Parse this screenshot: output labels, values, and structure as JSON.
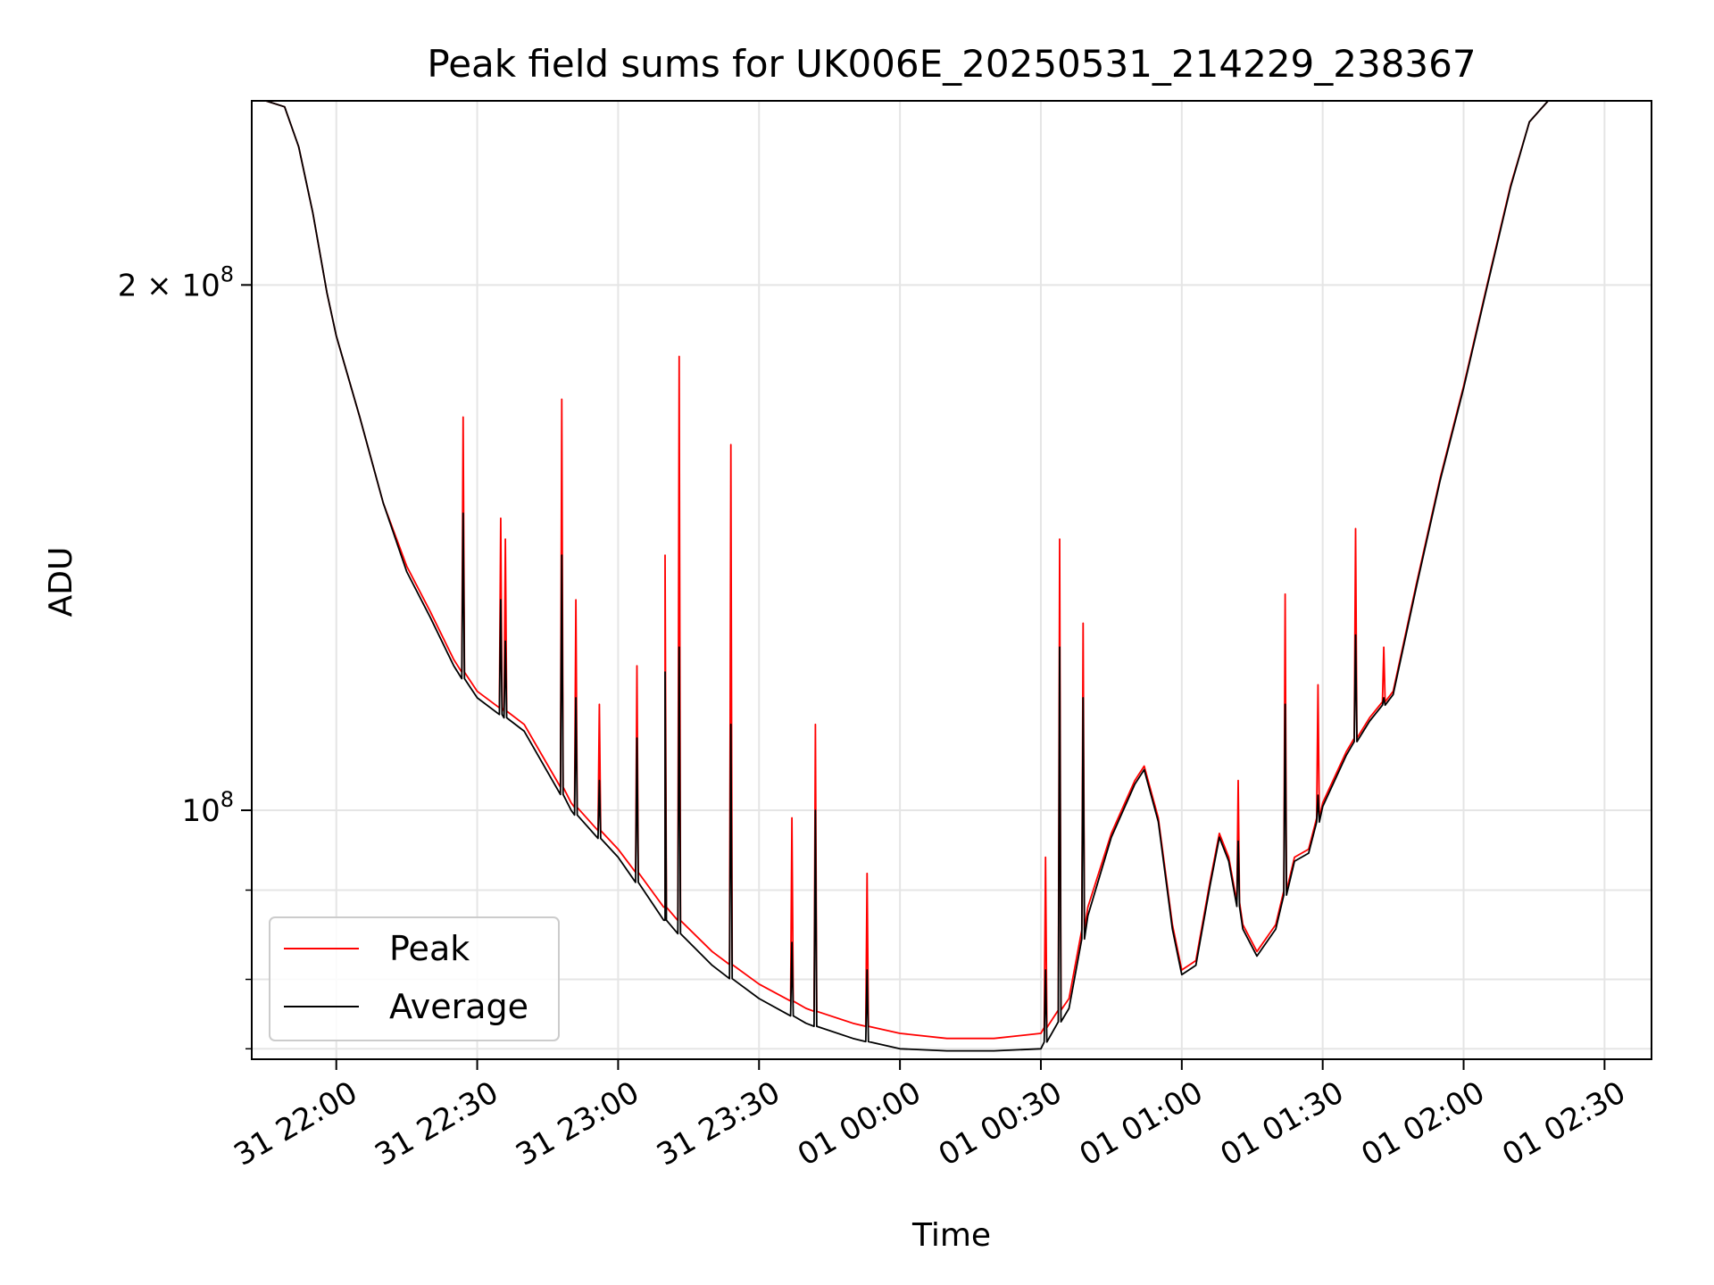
{
  "chart_data": {
    "type": "line",
    "title": "Peak field sums for UK006E_20250531_214229_238367",
    "xlabel": "Time",
    "ylabel": "ADU",
    "y_scale": "log",
    "ylim": [
      72000000,
      255000000
    ],
    "xlim": [
      "2025-05-31 21:42",
      "2025-06-01 02:40"
    ],
    "grid": true,
    "legend_position": "lower-left",
    "x_ticks": [
      {
        "t": "2025-05-31 22:00",
        "label": "31 22:00"
      },
      {
        "t": "2025-05-31 22:30",
        "label": "31 22:30"
      },
      {
        "t": "2025-05-31 23:00",
        "label": "31 23:00"
      },
      {
        "t": "2025-05-31 23:30",
        "label": "31 23:30"
      },
      {
        "t": "2025-06-01 00:00",
        "label": "01 00:00"
      },
      {
        "t": "2025-06-01 00:30",
        "label": "01 00:30"
      },
      {
        "t": "2025-06-01 01:00",
        "label": "01 01:00"
      },
      {
        "t": "2025-06-01 01:30",
        "label": "01 01:30"
      },
      {
        "t": "2025-06-01 02:00",
        "label": "01 02:00"
      },
      {
        "t": "2025-06-01 02:30",
        "label": "01 02:30"
      }
    ],
    "y_ticks": [
      {
        "value": 200000000,
        "base": "2 × 10",
        "exp": "8"
      },
      {
        "value": 100000000,
        "base": "10",
        "exp": "8"
      }
    ],
    "y_minor_ticks": [
      80000000,
      90000000,
      73000000
    ],
    "colors": {
      "peak": "#ff0000",
      "average": "#000000"
    },
    "series": [
      {
        "name": "Peak",
        "color": "#ff0000",
        "points": [
          [
            "2025-05-31 21:45",
            255000000
          ],
          [
            "2025-05-31 21:49",
            253000000
          ],
          [
            "2025-05-31 21:52",
            240000000
          ],
          [
            "2025-05-31 21:55",
            220000000
          ],
          [
            "2025-05-31 21:58",
            198000000
          ],
          [
            "2025-05-31 22:00",
            187000000
          ],
          [
            "2025-05-31 22:05",
            168000000
          ],
          [
            "2025-05-31 22:10",
            150000000
          ],
          [
            "2025-05-31 22:15",
            138000000
          ],
          [
            "2025-05-31 22:20",
            130000000
          ],
          [
            "2025-05-31 22:25",
            122000000
          ],
          [
            "2025-05-31 22:30",
            117000000
          ],
          [
            "2025-05-31 22:40",
            112000000
          ],
          [
            "2025-05-31 22:50",
            101000000
          ],
          [
            "2025-05-31 23:00",
            95000000
          ],
          [
            "2025-05-31 23:10",
            88000000
          ],
          [
            "2025-05-31 23:20",
            83000000
          ],
          [
            "2025-05-31 23:30",
            79500000
          ],
          [
            "2025-05-31 23:40",
            77000000
          ],
          [
            "2025-05-31 23:50",
            75500000
          ],
          [
            "2025-06-01 00:00",
            74500000
          ],
          [
            "2025-06-01 00:10",
            74000000
          ],
          [
            "2025-06-01 00:20",
            74000000
          ],
          [
            "2025-06-01 00:30",
            74500000
          ],
          [
            "2025-06-01 00:36",
            78000000
          ],
          [
            "2025-06-01 00:40",
            88000000
          ],
          [
            "2025-06-01 00:45",
            97000000
          ],
          [
            "2025-06-01 00:50",
            104000000
          ],
          [
            "2025-06-01 00:52",
            106000000
          ],
          [
            "2025-06-01 00:55",
            99000000
          ],
          [
            "2025-06-01 00:58",
            86000000
          ],
          [
            "2025-06-01 01:00",
            81000000
          ],
          [
            "2025-06-01 01:03",
            82000000
          ],
          [
            "2025-06-01 01:06",
            91000000
          ],
          [
            "2025-06-01 01:08",
            97000000
          ],
          [
            "2025-06-01 01:10",
            94000000
          ],
          [
            "2025-06-01 01:13",
            86000000
          ],
          [
            "2025-06-01 01:16",
            83000000
          ],
          [
            "2025-06-01 01:20",
            86000000
          ],
          [
            "2025-06-01 01:24",
            94000000
          ],
          [
            "2025-06-01 01:27",
            95000000
          ],
          [
            "2025-06-01 01:30",
            101000000
          ],
          [
            "2025-06-01 01:35",
            108000000
          ],
          [
            "2025-06-01 01:40",
            113000000
          ],
          [
            "2025-06-01 01:45",
            117000000
          ],
          [
            "2025-06-01 01:50",
            135000000
          ],
          [
            "2025-06-01 01:55",
            155000000
          ],
          [
            "2025-06-01 02:00",
            175000000
          ],
          [
            "2025-06-01 02:05",
            200000000
          ],
          [
            "2025-06-01 02:10",
            228000000
          ],
          [
            "2025-06-01 02:14",
            248000000
          ],
          [
            "2025-06-01 02:18",
            255000000
          ]
        ]
      },
      {
        "name": "Average",
        "color": "#000000",
        "points": [
          [
            "2025-05-31 21:45",
            255000000
          ],
          [
            "2025-05-31 21:49",
            253000000
          ],
          [
            "2025-05-31 21:52",
            240000000
          ],
          [
            "2025-05-31 21:55",
            220000000
          ],
          [
            "2025-05-31 21:58",
            198000000
          ],
          [
            "2025-05-31 22:00",
            187000000
          ],
          [
            "2025-05-31 22:05",
            168000000
          ],
          [
            "2025-05-31 22:10",
            150000000
          ],
          [
            "2025-05-31 22:15",
            137000000
          ],
          [
            "2025-05-31 22:20",
            129000000
          ],
          [
            "2025-05-31 22:25",
            121000000
          ],
          [
            "2025-05-31 22:30",
            116000000
          ],
          [
            "2025-05-31 22:40",
            111000000
          ],
          [
            "2025-05-31 22:50",
            100000000
          ],
          [
            "2025-05-31 23:00",
            94000000
          ],
          [
            "2025-05-31 23:10",
            86500000
          ],
          [
            "2025-05-31 23:20",
            81500000
          ],
          [
            "2025-05-31 23:30",
            78000000
          ],
          [
            "2025-05-31 23:40",
            75500000
          ],
          [
            "2025-05-31 23:50",
            74000000
          ],
          [
            "2025-06-01 00:00",
            73000000
          ],
          [
            "2025-06-01 00:10",
            72800000
          ],
          [
            "2025-06-01 00:20",
            72800000
          ],
          [
            "2025-06-01 00:30",
            73000000
          ],
          [
            "2025-06-01 00:36",
            77000000
          ],
          [
            "2025-06-01 00:40",
            87000000
          ],
          [
            "2025-06-01 00:45",
            96500000
          ],
          [
            "2025-06-01 00:50",
            103500000
          ],
          [
            "2025-06-01 00:52",
            105500000
          ],
          [
            "2025-06-01 00:55",
            98500000
          ],
          [
            "2025-06-01 00:58",
            85500000
          ],
          [
            "2025-06-01 01:00",
            80500000
          ],
          [
            "2025-06-01 01:03",
            81500000
          ],
          [
            "2025-06-01 01:06",
            90500000
          ],
          [
            "2025-06-01 01:08",
            96500000
          ],
          [
            "2025-06-01 01:10",
            93500000
          ],
          [
            "2025-06-01 01:13",
            85500000
          ],
          [
            "2025-06-01 01:16",
            82500000
          ],
          [
            "2025-06-01 01:20",
            85500000
          ],
          [
            "2025-06-01 01:24",
            93500000
          ],
          [
            "2025-06-01 01:27",
            94500000
          ],
          [
            "2025-06-01 01:30",
            100500000
          ],
          [
            "2025-06-01 01:35",
            107500000
          ],
          [
            "2025-06-01 01:40",
            112500000
          ],
          [
            "2025-06-01 01:45",
            116500000
          ],
          [
            "2025-06-01 01:50",
            134500000
          ],
          [
            "2025-06-01 01:55",
            154500000
          ],
          [
            "2025-06-01 02:00",
            174500000
          ],
          [
            "2025-06-01 02:05",
            199500000
          ],
          [
            "2025-06-01 02:10",
            227500000
          ],
          [
            "2025-06-01 02:14",
            248000000
          ],
          [
            "2025-06-01 02:18",
            255000000
          ]
        ]
      }
    ],
    "spikes": [
      {
        "t": "2025-05-31 22:27",
        "peak": 168000000,
        "avg": 148000000
      },
      {
        "t": "2025-05-31 22:35",
        "peak": 147000000,
        "avg": 132000000
      },
      {
        "t": "2025-05-31 22:36",
        "peak": 143000000,
        "avg": 125000000
      },
      {
        "t": "2025-05-31 22:48",
        "peak": 172000000,
        "avg": 140000000
      },
      {
        "t": "2025-05-31 22:51",
        "peak": 132000000,
        "avg": 116000000
      },
      {
        "t": "2025-05-31 22:56",
        "peak": 115000000,
        "avg": 104000000
      },
      {
        "t": "2025-05-31 23:04",
        "peak": 121000000,
        "avg": 110000000
      },
      {
        "t": "2025-05-31 23:10",
        "peak": 140000000,
        "avg": 120000000
      },
      {
        "t": "2025-05-31 23:13",
        "peak": 182000000,
        "avg": 124000000
      },
      {
        "t": "2025-05-31 23:24",
        "peak": 162000000,
        "avg": 112000000
      },
      {
        "t": "2025-05-31 23:37",
        "peak": 99000000,
        "avg": 84000000
      },
      {
        "t": "2025-05-31 23:42",
        "peak": 112000000,
        "avg": 100000000
      },
      {
        "t": "2025-05-31 23:53",
        "peak": 92000000,
        "avg": 81000000
      },
      {
        "t": "2025-06-01 00:31",
        "peak": 94000000,
        "avg": 81000000
      },
      {
        "t": "2025-06-01 00:34",
        "peak": 143000000,
        "avg": 124000000
      },
      {
        "t": "2025-06-01 00:39",
        "peak": 128000000,
        "avg": 116000000
      },
      {
        "t": "2025-06-01 01:12",
        "peak": 104000000,
        "avg": 96000000
      },
      {
        "t": "2025-06-01 01:22",
        "peak": 133000000,
        "avg": 115000000
      },
      {
        "t": "2025-06-01 01:29",
        "peak": 118000000,
        "avg": 102000000
      },
      {
        "t": "2025-06-01 01:37",
        "peak": 145000000,
        "avg": 126000000
      },
      {
        "t": "2025-06-01 01:43",
        "peak": 124000000,
        "avg": 116000000
      }
    ]
  }
}
